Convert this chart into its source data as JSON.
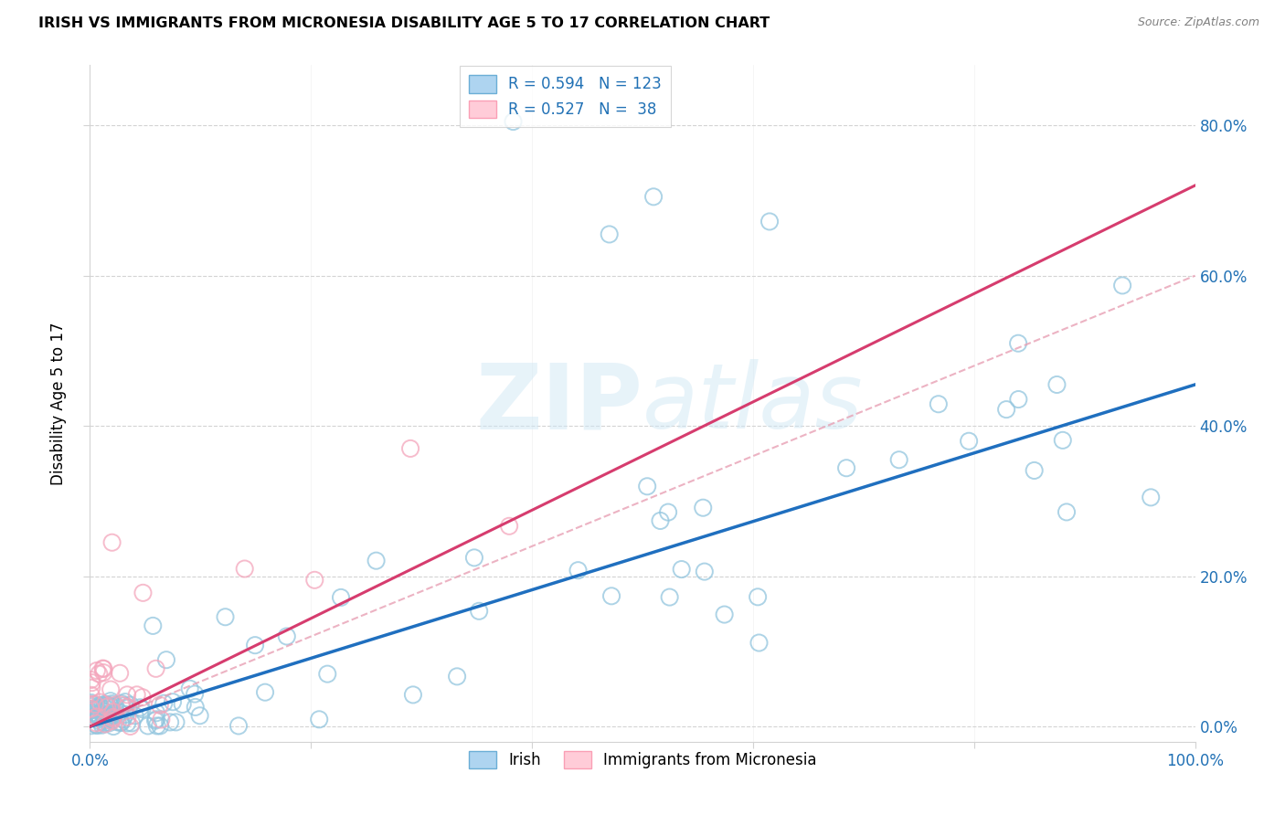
{
  "title": "IRISH VS IMMIGRANTS FROM MICRONESIA DISABILITY AGE 5 TO 17 CORRELATION CHART",
  "source": "Source: ZipAtlas.com",
  "ylabel": "Disability Age 5 to 17",
  "xlim": [
    0.0,
    1.0
  ],
  "ylim": [
    -0.02,
    0.88
  ],
  "blue_color": "#92c5de",
  "pink_color": "#f4a6bc",
  "blue_line_color": "#1f6fbf",
  "pink_line_color": "#d63c6e",
  "pink_dash_color": "#e8a0b4",
  "R_blue": 0.594,
  "N_blue": 123,
  "R_pink": 0.527,
  "N_pink": 38,
  "watermark": "ZIPAtlas",
  "legend_label_blue": "Irish",
  "legend_label_pink": "Immigrants from Micronesia",
  "blue_intercept": 0.0,
  "blue_slope": 0.455,
  "pink_intercept": 0.0,
  "pink_slope": 0.72
}
